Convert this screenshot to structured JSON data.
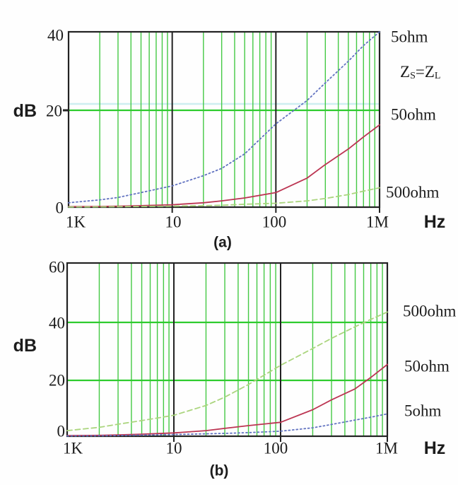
{
  "colors": {
    "grid_vertical_minor": "#44c944",
    "grid_horizontal": "#2ecc2e",
    "decade_line": "#222222",
    "plot_border": "#222222",
    "accent_cyan_line": "#cdeef0"
  },
  "chart_data": [
    {
      "type": "line",
      "caption": "(a)",
      "xlabel": "Hz",
      "ylabel": "dB",
      "x_scale": "log",
      "x_range_hz": [
        1000,
        1000000
      ],
      "ylim": [
        0,
        40
      ],
      "grid": "log-minor-verticals green, horizontal green at 20 dB, black decade lines",
      "x_ticks": [
        {
          "label": "1K",
          "value": 1000
        },
        {
          "label": "10",
          "value": 10000
        },
        {
          "label": "100",
          "value": 100000
        },
        {
          "label": "1M",
          "value": 1000000
        }
      ],
      "y_ticks": [
        {
          "label": "40",
          "value": 40
        },
        {
          "label": "20",
          "value": 20
        },
        {
          "label": "0",
          "value": 0
        }
      ],
      "annotation": {
        "z1": "Z",
        "sub1": "S",
        "mid": "=Z",
        "sub2": "L"
      },
      "series": [
        {
          "name": "5ohm",
          "color": "#6273c1",
          "line_style": "dotted",
          "f": [
            1000,
            2000,
            3000,
            5000,
            10000,
            20000,
            30000,
            50000,
            100000,
            200000,
            300000,
            500000,
            700000,
            1000000
          ],
          "dB": [
            0.9,
            1.5,
            2.0,
            3.0,
            4.4,
            6.5,
            8.0,
            11.0,
            17.2,
            22.5,
            27.0,
            32.5,
            36.5,
            40.0
          ]
        },
        {
          "name": "50ohm",
          "color": "#bc3552",
          "line_style": "solid",
          "f": [
            1000,
            2000,
            3000,
            5000,
            10000,
            20000,
            30000,
            50000,
            100000,
            200000,
            300000,
            500000,
            700000,
            1000000
          ],
          "dB": [
            0.1,
            0.15,
            0.2,
            0.3,
            0.5,
            0.9,
            1.3,
            1.9,
            3.0,
            6.0,
            8.8,
            12.0,
            14.5,
            17.0
          ]
        },
        {
          "name": "500ohm",
          "color": "#abd57e",
          "line_style": "dashed",
          "f": [
            1000,
            2000,
            3000,
            5000,
            10000,
            20000,
            30000,
            50000,
            100000,
            200000,
            300000,
            500000,
            700000,
            1000000
          ],
          "dB": [
            0.05,
            0.08,
            0.1,
            0.15,
            0.2,
            0.3,
            0.4,
            0.6,
            0.8,
            1.3,
            1.8,
            2.6,
            3.3,
            4.0
          ]
        }
      ]
    },
    {
      "type": "line",
      "caption": "(b)",
      "xlabel": "Hz",
      "ylabel": "dB",
      "x_scale": "log",
      "x_range_hz": [
        1000,
        1000000
      ],
      "ylim": [
        0,
        60
      ],
      "grid": "log-minor-verticals green, horizontal green at 20 and 40 dB, black decade lines",
      "x_ticks": [
        {
          "label": "1K",
          "value": 1000
        },
        {
          "label": "10",
          "value": 10000
        },
        {
          "label": "100",
          "value": 100000
        },
        {
          "label": "1M",
          "value": 1000000
        }
      ],
      "y_ticks": [
        {
          "label": "60",
          "value": 60
        },
        {
          "label": "40",
          "value": 40
        },
        {
          "label": "20",
          "value": 20
        },
        {
          "label": "0",
          "value": 0
        }
      ],
      "series": [
        {
          "name": "500ohm",
          "color": "#abd57e",
          "line_style": "dashed",
          "f": [
            1000,
            2000,
            3000,
            5000,
            10000,
            20000,
            30000,
            50000,
            100000,
            200000,
            300000,
            500000,
            700000,
            1000000
          ],
          "dB": [
            2.0,
            3.2,
            4.3,
            5.6,
            7.5,
            11.0,
            14.0,
            18.5,
            25.2,
            31.0,
            34.5,
            38.5,
            41.0,
            43.5
          ]
        },
        {
          "name": "50ohm",
          "color": "#bc3552",
          "line_style": "solid",
          "f": [
            1000,
            2000,
            3000,
            5000,
            10000,
            20000,
            30000,
            50000,
            100000,
            200000,
            300000,
            500000,
            700000,
            1000000
          ],
          "dB": [
            0.2,
            0.3,
            0.45,
            0.7,
            1.2,
            2.0,
            2.8,
            3.8,
            5.0,
            9.5,
            13.0,
            17.0,
            21.0,
            25.5
          ]
        },
        {
          "name": "5ohm",
          "color": "#6273c1",
          "line_style": "dotted",
          "f": [
            1000,
            2000,
            3000,
            5000,
            10000,
            20000,
            30000,
            50000,
            100000,
            200000,
            300000,
            500000,
            700000,
            1000000
          ],
          "dB": [
            0.1,
            0.15,
            0.25,
            0.4,
            0.6,
            0.85,
            1.0,
            1.3,
            1.8,
            3.0,
            4.2,
            5.8,
            6.8,
            8.0
          ]
        }
      ]
    }
  ]
}
